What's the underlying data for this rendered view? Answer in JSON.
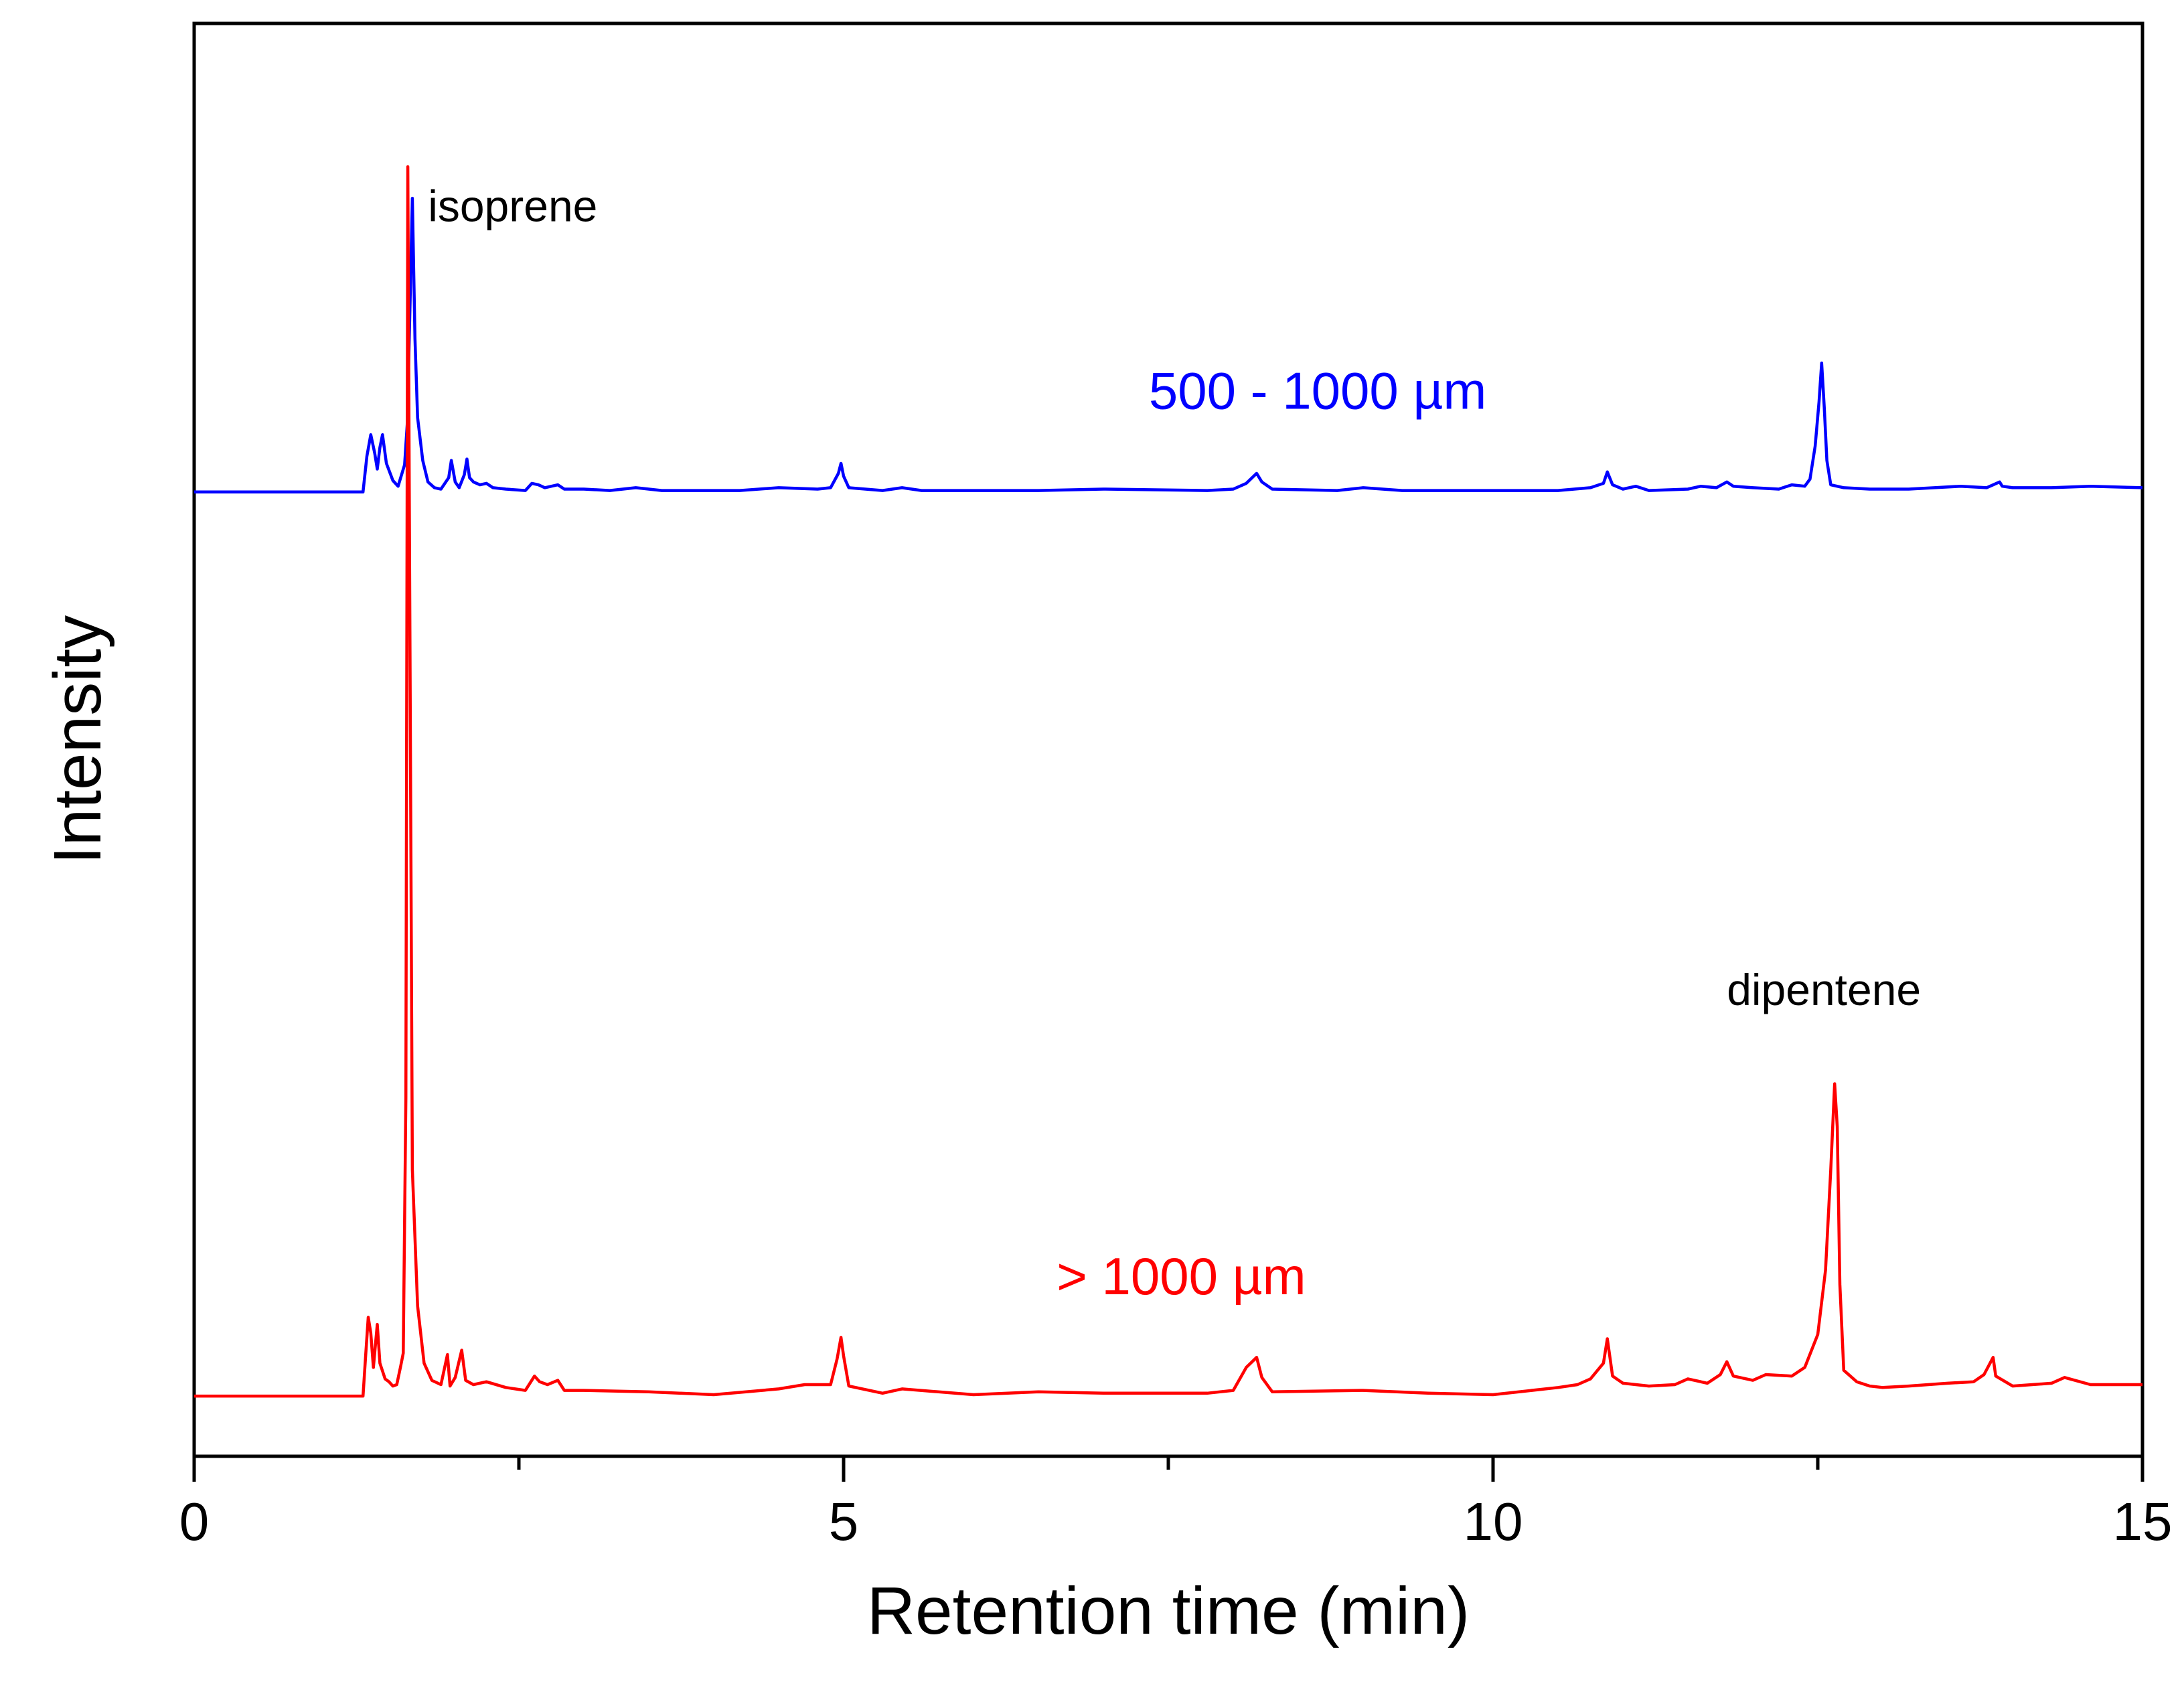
{
  "chart_data": {
    "type": "line",
    "title": "",
    "xlabel": "Retention time (min)",
    "ylabel": "Intensity",
    "xlim": [
      0,
      15
    ],
    "ylim": [
      0,
      100
    ],
    "x_ticks": [
      0,
      5,
      10,
      15
    ],
    "x_minor_ticks": [
      2.5,
      7.5,
      12.5
    ],
    "series": [
      {
        "name": "500 - 1000 µm",
        "color": "#0000ff",
        "baseline": 67.3,
        "label_pos": [
          8.65,
          73.1
        ],
        "points": [
          [
            0,
            67.3
          ],
          [
            1.3,
            67.3
          ],
          [
            1.33,
            69.8
          ],
          [
            1.36,
            71.3
          ],
          [
            1.39,
            70.0
          ],
          [
            1.41,
            68.9
          ],
          [
            1.43,
            70.4
          ],
          [
            1.45,
            71.3
          ],
          [
            1.48,
            69.3
          ],
          [
            1.53,
            68.1
          ],
          [
            1.57,
            67.7
          ],
          [
            1.6,
            68.6
          ],
          [
            1.62,
            69.2
          ],
          [
            1.64,
            72.0
          ],
          [
            1.66,
            79.5
          ],
          [
            1.68,
            87.8
          ],
          [
            1.7,
            78.0
          ],
          [
            1.72,
            72.5
          ],
          [
            1.76,
            69.5
          ],
          [
            1.8,
            68.0
          ],
          [
            1.85,
            67.6
          ],
          [
            1.9,
            67.5
          ],
          [
            1.96,
            68.3
          ],
          [
            1.98,
            69.5
          ],
          [
            2.01,
            68.0
          ],
          [
            2.04,
            67.6
          ],
          [
            2.08,
            68.5
          ],
          [
            2.1,
            69.6
          ],
          [
            2.12,
            68.3
          ],
          [
            2.15,
            68.0
          ],
          [
            2.2,
            67.8
          ],
          [
            2.25,
            67.9
          ],
          [
            2.3,
            67.6
          ],
          [
            2.4,
            67.5
          ],
          [
            2.55,
            67.4
          ],
          [
            2.6,
            67.9
          ],
          [
            2.65,
            67.8
          ],
          [
            2.7,
            67.6
          ],
          [
            2.8,
            67.8
          ],
          [
            2.85,
            67.5
          ],
          [
            3.0,
            67.5
          ],
          [
            3.2,
            67.4
          ],
          [
            3.4,
            67.6
          ],
          [
            3.6,
            67.4
          ],
          [
            4.2,
            67.4
          ],
          [
            4.5,
            67.6
          ],
          [
            4.8,
            67.5
          ],
          [
            4.9,
            67.6
          ],
          [
            4.96,
            68.6
          ],
          [
            4.98,
            69.3
          ],
          [
            5.0,
            68.4
          ],
          [
            5.04,
            67.6
          ],
          [
            5.3,
            67.4
          ],
          [
            5.45,
            67.6
          ],
          [
            5.6,
            67.4
          ],
          [
            6.5,
            67.4
          ],
          [
            7.0,
            67.5
          ],
          [
            7.8,
            67.4
          ],
          [
            8.0,
            67.5
          ],
          [
            8.1,
            67.9
          ],
          [
            8.18,
            68.6
          ],
          [
            8.22,
            68.0
          ],
          [
            8.3,
            67.5
          ],
          [
            8.8,
            67.4
          ],
          [
            9.0,
            67.6
          ],
          [
            9.3,
            67.4
          ],
          [
            10.0,
            67.4
          ],
          [
            10.5,
            67.4
          ],
          [
            10.75,
            67.6
          ],
          [
            10.85,
            67.9
          ],
          [
            10.88,
            68.7
          ],
          [
            10.92,
            67.8
          ],
          [
            11.0,
            67.5
          ],
          [
            11.1,
            67.7
          ],
          [
            11.2,
            67.4
          ],
          [
            11.5,
            67.5
          ],
          [
            11.6,
            67.7
          ],
          [
            11.72,
            67.6
          ],
          [
            11.8,
            68.0
          ],
          [
            11.85,
            67.7
          ],
          [
            12.0,
            67.6
          ],
          [
            12.2,
            67.5
          ],
          [
            12.3,
            67.8
          ],
          [
            12.4,
            67.7
          ],
          [
            12.44,
            68.2
          ],
          [
            12.48,
            70.5
          ],
          [
            12.51,
            73.6
          ],
          [
            12.53,
            76.3
          ],
          [
            12.55,
            73.2
          ],
          [
            12.57,
            69.5
          ],
          [
            12.6,
            67.8
          ],
          [
            12.7,
            67.6
          ],
          [
            12.9,
            67.5
          ],
          [
            13.2,
            67.5
          ],
          [
            13.4,
            67.6
          ],
          [
            13.6,
            67.7
          ],
          [
            13.8,
            67.6
          ],
          [
            13.9,
            68.0
          ],
          [
            13.92,
            67.7
          ],
          [
            14.0,
            67.6
          ],
          [
            14.3,
            67.6
          ],
          [
            14.6,
            67.7
          ],
          [
            15.0,
            67.6
          ]
        ]
      },
      {
        "name": "> 1000 µm",
        "color": "#ff0000",
        "baseline": 4.2,
        "label_pos": [
          7.6,
          11.3
        ],
        "points": [
          [
            0,
            4.2
          ],
          [
            1.3,
            4.2
          ],
          [
            1.32,
            7.0
          ],
          [
            1.34,
            9.7
          ],
          [
            1.36,
            8.6
          ],
          [
            1.38,
            6.2
          ],
          [
            1.41,
            9.2
          ],
          [
            1.43,
            6.5
          ],
          [
            1.47,
            5.4
          ],
          [
            1.5,
            5.2
          ],
          [
            1.53,
            4.9
          ],
          [
            1.56,
            5.0
          ],
          [
            1.59,
            6.3
          ],
          [
            1.61,
            7.2
          ],
          [
            1.63,
            25.0
          ],
          [
            1.645,
            90.0
          ],
          [
            1.66,
            60.0
          ],
          [
            1.68,
            20.0
          ],
          [
            1.72,
            10.5
          ],
          [
            1.77,
            6.5
          ],
          [
            1.83,
            5.3
          ],
          [
            1.9,
            5.0
          ],
          [
            1.95,
            7.1
          ],
          [
            1.97,
            4.9
          ],
          [
            2.01,
            5.5
          ],
          [
            2.06,
            7.4
          ],
          [
            2.09,
            5.3
          ],
          [
            2.15,
            5.0
          ],
          [
            2.25,
            5.2
          ],
          [
            2.4,
            4.8
          ],
          [
            2.55,
            4.6
          ],
          [
            2.62,
            5.6
          ],
          [
            2.66,
            5.2
          ],
          [
            2.72,
            5.0
          ],
          [
            2.8,
            5.3
          ],
          [
            2.85,
            4.6
          ],
          [
            3.0,
            4.6
          ],
          [
            3.5,
            4.5
          ],
          [
            4.0,
            4.3
          ],
          [
            4.5,
            4.7
          ],
          [
            4.7,
            5.0
          ],
          [
            4.9,
            5.0
          ],
          [
            4.95,
            6.8
          ],
          [
            4.98,
            8.3
          ],
          [
            5.0,
            7.0
          ],
          [
            5.04,
            4.9
          ],
          [
            5.3,
            4.4
          ],
          [
            5.45,
            4.7
          ],
          [
            6.0,
            4.3
          ],
          [
            6.5,
            4.5
          ],
          [
            7.0,
            4.4
          ],
          [
            7.8,
            4.4
          ],
          [
            8.0,
            4.6
          ],
          [
            8.1,
            6.2
          ],
          [
            8.18,
            6.9
          ],
          [
            8.22,
            5.5
          ],
          [
            8.3,
            4.5
          ],
          [
            9.0,
            4.6
          ],
          [
            9.5,
            4.4
          ],
          [
            10.0,
            4.3
          ],
          [
            10.5,
            4.8
          ],
          [
            10.65,
            5.0
          ],
          [
            10.75,
            5.4
          ],
          [
            10.85,
            6.5
          ],
          [
            10.88,
            8.2
          ],
          [
            10.92,
            5.6
          ],
          [
            11.0,
            5.1
          ],
          [
            11.2,
            4.9
          ],
          [
            11.4,
            5.0
          ],
          [
            11.5,
            5.4
          ],
          [
            11.65,
            5.1
          ],
          [
            11.75,
            5.7
          ],
          [
            11.8,
            6.6
          ],
          [
            11.85,
            5.6
          ],
          [
            12.0,
            5.3
          ],
          [
            12.1,
            5.7
          ],
          [
            12.3,
            5.6
          ],
          [
            12.4,
            6.2
          ],
          [
            12.5,
            8.5
          ],
          [
            12.56,
            13.0
          ],
          [
            12.6,
            20.0
          ],
          [
            12.63,
            26.0
          ],
          [
            12.65,
            23.0
          ],
          [
            12.67,
            12.0
          ],
          [
            12.7,
            6.0
          ],
          [
            12.8,
            5.2
          ],
          [
            12.9,
            4.9
          ],
          [
            13.0,
            4.8
          ],
          [
            13.2,
            4.9
          ],
          [
            13.5,
            5.1
          ],
          [
            13.7,
            5.2
          ],
          [
            13.78,
            5.7
          ],
          [
            13.85,
            6.9
          ],
          [
            13.87,
            5.6
          ],
          [
            14.0,
            4.9
          ],
          [
            14.3,
            5.1
          ],
          [
            14.4,
            5.5
          ],
          [
            14.6,
            5.0
          ],
          [
            15.0,
            5.0
          ]
        ]
      }
    ],
    "annotations": [
      {
        "text": "isoprene",
        "x": 1.8,
        "y": 86.2
      },
      {
        "text": "dipentene",
        "x": 11.8,
        "y": 31.5
      }
    ]
  }
}
